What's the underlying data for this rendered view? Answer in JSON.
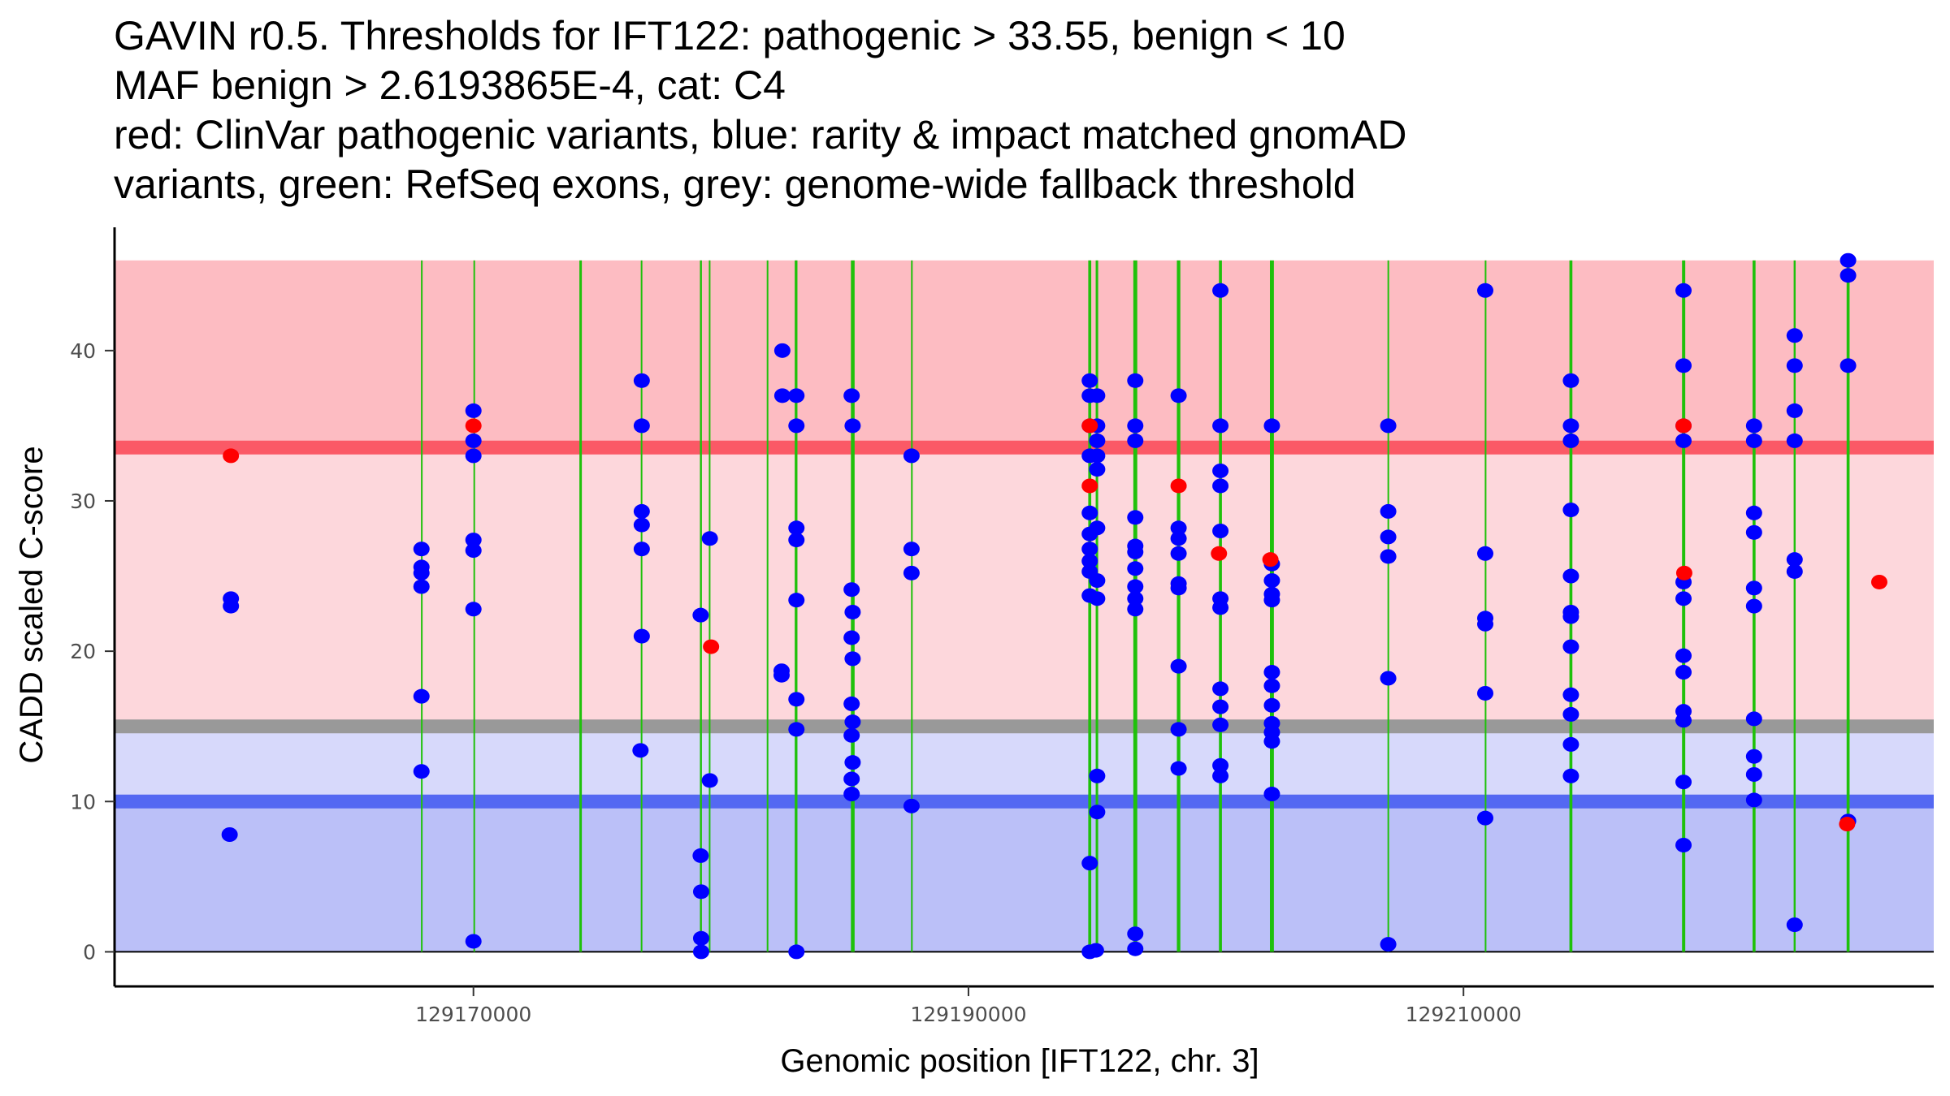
{
  "chart_data": {
    "type": "scatter",
    "title_lines": [
      "GAVIN r0.5. Thresholds for IFT122: pathogenic > 33.55, benign < 10",
      "MAF benign > 2.6193865E-4, cat: C4",
      "red: ClinVar pathogenic variants, blue: rarity & impact matched gnomAD",
      "variants, green: RefSeq exons, grey: genome-wide fallback threshold"
    ],
    "xlabel": "Genomic position [IFT122, chr. 3]",
    "ylabel": "CADD scaled C-score",
    "xlim": [
      129155500,
      129229000
    ],
    "ylim": [
      -2.3,
      48.2
    ],
    "x_ticks": [
      129170000,
      129190000,
      129210000
    ],
    "x_tick_labels": [
      "129170000",
      "129190000",
      "129210000"
    ],
    "y_ticks": [
      0,
      10,
      20,
      30,
      40
    ],
    "y_tick_labels": [
      "0",
      "10",
      "20",
      "30",
      "40"
    ],
    "grid": false,
    "bands": [
      {
        "name": "pathogenic-zone",
        "from": 33.55,
        "to": 46,
        "color": "#fdbcc2"
      },
      {
        "name": "vus-upper-zone",
        "from": 15,
        "to": 33.55,
        "color": "#fdd7dc"
      },
      {
        "name": "vus-lower-zone",
        "from": 10,
        "to": 15,
        "color": "#d7d9fb"
      },
      {
        "name": "benign-zone",
        "from": 0,
        "to": 10,
        "color": "#bbc0f8"
      }
    ],
    "threshold_lines": [
      {
        "name": "pathogenic-threshold",
        "value": 33.55,
        "color": "#fb5966"
      },
      {
        "name": "fallback-threshold",
        "value": 15,
        "color": "#999999"
      },
      {
        "name": "benign-threshold",
        "value": 10,
        "color": "#5468f2"
      }
    ],
    "exons": [
      {
        "start": 129167880,
        "end": 129167920
      },
      {
        "start": 129170000,
        "end": 129170040
      },
      {
        "start": 129174280,
        "end": 129174380
      },
      {
        "start": 129176760,
        "end": 129176820
      },
      {
        "start": 129179150,
        "end": 129179230
      },
      {
        "start": 129179510,
        "end": 129179560
      },
      {
        "start": 129181850,
        "end": 129181910
      },
      {
        "start": 129182980,
        "end": 129183090
      },
      {
        "start": 129185250,
        "end": 129185400
      },
      {
        "start": 129187680,
        "end": 129187740
      },
      {
        "start": 129194840,
        "end": 129194960
      },
      {
        "start": 129195140,
        "end": 129195240
      },
      {
        "start": 129196660,
        "end": 129196820
      },
      {
        "start": 129198420,
        "end": 129198560
      },
      {
        "start": 129200120,
        "end": 129200240
      },
      {
        "start": 129202180,
        "end": 129202340
      },
      {
        "start": 129206930,
        "end": 129206990
      },
      {
        "start": 129210860,
        "end": 129210900
      },
      {
        "start": 129214280,
        "end": 129214400
      },
      {
        "start": 129218830,
        "end": 129218960
      },
      {
        "start": 129221680,
        "end": 129221800
      },
      {
        "start": 129223340,
        "end": 129223420
      },
      {
        "start": 129225480,
        "end": 129225600
      }
    ],
    "series": [
      {
        "name": "gnomAD variants",
        "color": "#0000ff",
        "points": [
          [
            129160200,
            23.5
          ],
          [
            129160200,
            23.0
          ],
          [
            129160150,
            7.8
          ],
          [
            129167900,
            26.8
          ],
          [
            129167900,
            25.6
          ],
          [
            129167900,
            25.2
          ],
          [
            129167900,
            24.3
          ],
          [
            129167900,
            17.0
          ],
          [
            129167900,
            12.0
          ],
          [
            129170000,
            36.0
          ],
          [
            129170000,
            34.0
          ],
          [
            129170000,
            33.0
          ],
          [
            129170000,
            27.4
          ],
          [
            129170000,
            26.7
          ],
          [
            129170000,
            22.8
          ],
          [
            129170000,
            0.7
          ],
          [
            129176800,
            38.0
          ],
          [
            129176800,
            35.0
          ],
          [
            129176800,
            29.3
          ],
          [
            129176800,
            28.4
          ],
          [
            129176800,
            26.8
          ],
          [
            129176800,
            21.0
          ],
          [
            129176750,
            13.4
          ],
          [
            129179180,
            22.4
          ],
          [
            129179180,
            6.4
          ],
          [
            129179200,
            4.0
          ],
          [
            129179200,
            0.9
          ],
          [
            129179200,
            0.0
          ],
          [
            129179550,
            27.5
          ],
          [
            129179550,
            11.4
          ],
          [
            129182480,
            40.0
          ],
          [
            129182480,
            37.0
          ],
          [
            129182450,
            18.7
          ],
          [
            129182450,
            18.4
          ],
          [
            129183050,
            37.0
          ],
          [
            129183050,
            35.0
          ],
          [
            129183050,
            28.2
          ],
          [
            129183050,
            27.4
          ],
          [
            129183050,
            23.4
          ],
          [
            129183050,
            16.8
          ],
          [
            129183050,
            14.8
          ],
          [
            129183050,
            0.0
          ],
          [
            129185280,
            37.0
          ],
          [
            129185320,
            35.0
          ],
          [
            129185280,
            24.1
          ],
          [
            129185320,
            22.6
          ],
          [
            129185280,
            20.9
          ],
          [
            129185320,
            19.5
          ],
          [
            129185280,
            16.5
          ],
          [
            129185320,
            15.3
          ],
          [
            129185280,
            14.4
          ],
          [
            129185320,
            12.6
          ],
          [
            129185280,
            11.5
          ],
          [
            129185280,
            10.5
          ],
          [
            129187700,
            33.0
          ],
          [
            129187700,
            26.8
          ],
          [
            129187700,
            25.2
          ],
          [
            129187700,
            9.7
          ],
          [
            129194900,
            38.0
          ],
          [
            129194900,
            37.0
          ],
          [
            129194900,
            35.0
          ],
          [
            129194900,
            33.0
          ],
          [
            129194900,
            29.2
          ],
          [
            129194900,
            27.8
          ],
          [
            129194900,
            26.8
          ],
          [
            129194900,
            26.0
          ],
          [
            129194900,
            25.3
          ],
          [
            129194900,
            23.7
          ],
          [
            129194900,
            5.9
          ],
          [
            129194900,
            0.0
          ],
          [
            129195200,
            37.0
          ],
          [
            129195200,
            35.0
          ],
          [
            129195200,
            34.0
          ],
          [
            129195200,
            32.1
          ],
          [
            129195200,
            33.0
          ],
          [
            129195200,
            28.2
          ],
          [
            129195200,
            24.7
          ],
          [
            129195200,
            23.5
          ],
          [
            129195200,
            11.7
          ],
          [
            129195200,
            9.3
          ],
          [
            129195150,
            0.1
          ],
          [
            129196740,
            38.0
          ],
          [
            129196740,
            35.0
          ],
          [
            129196740,
            34.0
          ],
          [
            129196740,
            28.9
          ],
          [
            129196740,
            27.0
          ],
          [
            129196740,
            26.6
          ],
          [
            129196740,
            25.5
          ],
          [
            129196740,
            24.3
          ],
          [
            129196740,
            23.5
          ],
          [
            129196740,
            22.8
          ],
          [
            129196740,
            1.2
          ],
          [
            129196740,
            0.2
          ],
          [
            129198490,
            37.0
          ],
          [
            129198490,
            28.2
          ],
          [
            129198490,
            27.5
          ],
          [
            129198490,
            26.5
          ],
          [
            129198490,
            24.5
          ],
          [
            129198490,
            24.2
          ],
          [
            129198490,
            19.0
          ],
          [
            129198490,
            14.8
          ],
          [
            129198490,
            12.2
          ],
          [
            129200180,
            44.0
          ],
          [
            129200180,
            35.0
          ],
          [
            129200180,
            32.0
          ],
          [
            129200180,
            31.0
          ],
          [
            129200180,
            28.0
          ],
          [
            129200180,
            23.5
          ],
          [
            129200180,
            22.9
          ],
          [
            129200180,
            17.5
          ],
          [
            129200180,
            16.3
          ],
          [
            129200180,
            15.1
          ],
          [
            129200180,
            12.4
          ],
          [
            129200180,
            11.7
          ],
          [
            129202260,
            35.0
          ],
          [
            129202260,
            25.8
          ],
          [
            129202260,
            24.7
          ],
          [
            129202260,
            23.8
          ],
          [
            129202260,
            23.4
          ],
          [
            129202260,
            18.6
          ],
          [
            129202260,
            17.7
          ],
          [
            129202260,
            16.4
          ],
          [
            129202260,
            15.2
          ],
          [
            129202260,
            14.6
          ],
          [
            129202260,
            14.0
          ],
          [
            129202260,
            10.5
          ],
          [
            129206960,
            35.0
          ],
          [
            129206960,
            29.3
          ],
          [
            129206960,
            27.6
          ],
          [
            129206960,
            26.3
          ],
          [
            129206960,
            18.2
          ],
          [
            129206960,
            0.5
          ],
          [
            129210880,
            44.0
          ],
          [
            129210880,
            26.5
          ],
          [
            129210880,
            22.2
          ],
          [
            129210880,
            21.8
          ],
          [
            129210880,
            17.2
          ],
          [
            129210880,
            8.9
          ],
          [
            129214340,
            38.0
          ],
          [
            129214340,
            35.0
          ],
          [
            129214340,
            34.0
          ],
          [
            129214340,
            29.4
          ],
          [
            129214340,
            25.0
          ],
          [
            129214340,
            22.6
          ],
          [
            129214340,
            22.3
          ],
          [
            129214340,
            20.3
          ],
          [
            129214340,
            17.1
          ],
          [
            129214340,
            15.8
          ],
          [
            129214340,
            13.8
          ],
          [
            129214340,
            11.7
          ],
          [
            129218890,
            44.0
          ],
          [
            129218890,
            39.0
          ],
          [
            129218890,
            35.0
          ],
          [
            129218890,
            34.0
          ],
          [
            129218890,
            24.6
          ],
          [
            129218890,
            23.5
          ],
          [
            129218890,
            19.7
          ],
          [
            129218890,
            18.6
          ],
          [
            129218890,
            16.0
          ],
          [
            129218890,
            15.4
          ],
          [
            129218890,
            11.3
          ],
          [
            129218890,
            7.1
          ],
          [
            129221740,
            35.0
          ],
          [
            129221740,
            34.0
          ],
          [
            129221740,
            29.2
          ],
          [
            129221740,
            27.9
          ],
          [
            129221740,
            24.2
          ],
          [
            129221740,
            23.0
          ],
          [
            129221740,
            15.5
          ],
          [
            129221740,
            13.0
          ],
          [
            129221740,
            11.8
          ],
          [
            129221740,
            10.1
          ],
          [
            129223380,
            41.0
          ],
          [
            129223380,
            39.0
          ],
          [
            129223380,
            36.0
          ],
          [
            129223380,
            34.0
          ],
          [
            129223380,
            26.1
          ],
          [
            129223380,
            25.3
          ],
          [
            129223380,
            1.8
          ],
          [
            129225540,
            46.0
          ],
          [
            129225540,
            45.0
          ],
          [
            129225540,
            39.0
          ],
          [
            129225540,
            8.7
          ]
        ]
      },
      {
        "name": "ClinVar pathogenic variants",
        "color": "#ff0000",
        "points": [
          [
            129160200,
            33.0
          ],
          [
            129170000,
            35.0
          ],
          [
            129179600,
            20.3
          ],
          [
            129194900,
            35.0
          ],
          [
            129194900,
            31.0
          ],
          [
            129198490,
            31.0
          ],
          [
            129200120,
            26.5
          ],
          [
            129202200,
            26.1
          ],
          [
            129218890,
            35.0
          ],
          [
            129218920,
            25.2
          ],
          [
            129225500,
            8.5
          ],
          [
            129226800,
            24.6
          ]
        ]
      }
    ]
  }
}
